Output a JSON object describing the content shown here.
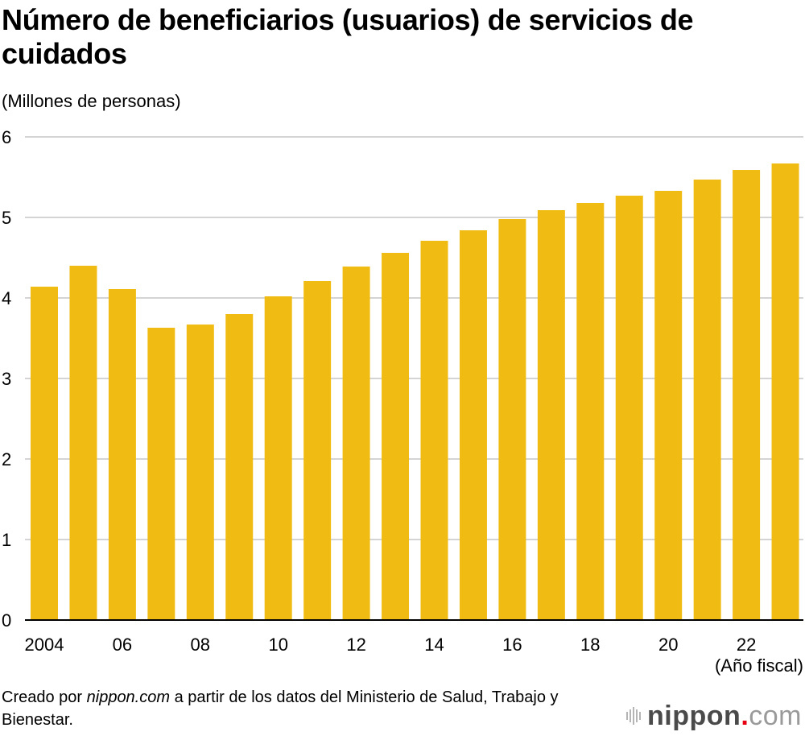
{
  "header": {
    "title": "Número de beneficiarios (usuarios) de servicios de cuidados",
    "unit_label": "(Millones de personas)"
  },
  "footer": {
    "source_prefix": "Creado por ",
    "source_site": "nippon.com",
    "source_suffix": " a partir de los datos del Ministerio de Salud, Trabajo y Bienestar.",
    "logo_main": "nippon",
    "logo_dot": ".",
    "logo_tld": "com"
  },
  "colors": {
    "bar": "#F0BC14",
    "grid": "#d4d4d4",
    "axis": "#000000",
    "logo_dot": "#e60012"
  },
  "chart_data": {
    "type": "bar",
    "title": "Número de beneficiarios (usuarios) de servicios de cuidados",
    "ylabel": "(Millones de personas)",
    "xlabel": "(Año fiscal)",
    "categories": [
      "2004",
      "2005",
      "2006",
      "2007",
      "2008",
      "2009",
      "2010",
      "2011",
      "2012",
      "2013",
      "2014",
      "2015",
      "2016",
      "2017",
      "2018",
      "2019",
      "2020",
      "2021",
      "2022",
      "2023"
    ],
    "values": [
      4.14,
      4.4,
      4.11,
      3.63,
      3.67,
      3.8,
      4.02,
      4.21,
      4.39,
      4.56,
      4.71,
      4.84,
      4.98,
      5.09,
      5.18,
      5.27,
      5.33,
      5.47,
      5.59,
      5.67
    ],
    "x_tick_labels": [
      {
        "category": "2004",
        "label": "2004"
      },
      {
        "category": "2006",
        "label": "06"
      },
      {
        "category": "2008",
        "label": "08"
      },
      {
        "category": "2010",
        "label": "10"
      },
      {
        "category": "2012",
        "label": "12"
      },
      {
        "category": "2014",
        "label": "14"
      },
      {
        "category": "2016",
        "label": "16"
      },
      {
        "category": "2018",
        "label": "18"
      },
      {
        "category": "2020",
        "label": "20"
      },
      {
        "category": "2022",
        "label": "22"
      }
    ],
    "y_ticks": [
      0,
      1,
      2,
      3,
      4,
      5,
      6
    ],
    "ylim": [
      0,
      6
    ],
    "grid": true,
    "legend": "none"
  }
}
